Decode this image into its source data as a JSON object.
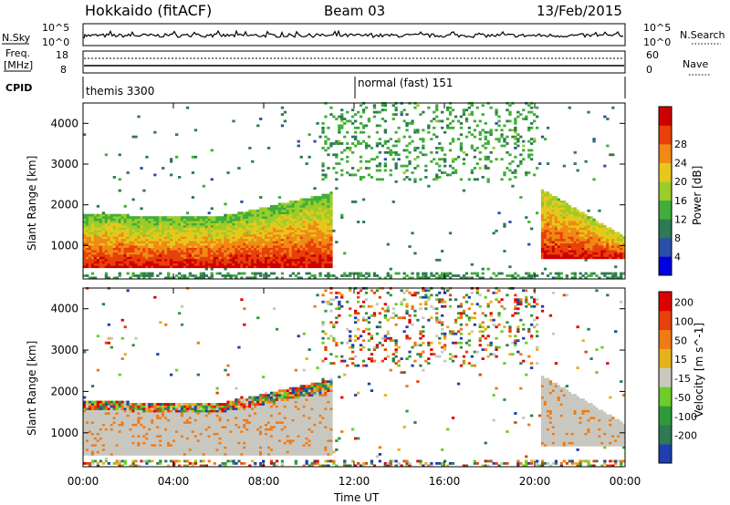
{
  "header": {
    "title": "Hokkaido (fitACF)",
    "beam": "Beam 03",
    "date": "13/Feb/2015"
  },
  "nsky_panel": {
    "left_label": "N.Sky",
    "right_label": "N.Search",
    "tick_top": "10^5",
    "tick_bottom": "10^0",
    "right_tick_top": "10^5",
    "right_tick_bottom": "10^0"
  },
  "freq_panel": {
    "left_label_1": "Freq.",
    "left_label_2": "[MHz]",
    "right_label": "Nave",
    "left_tick_top": "18",
    "left_tick_bottom": "8",
    "right_tick_top": "60",
    "right_tick_bottom": "0"
  },
  "cpid_panel": {
    "label": "CPID",
    "program_1": "themis 3300",
    "program_2": "normal (fast) 151"
  },
  "chart_data": [
    {
      "type": "heatmap",
      "ylabel": "Slant Range [km]",
      "xlabel": "Time UT",
      "x_ticks": [
        "00:00",
        "04:00",
        "08:00",
        "12:00",
        "16:00",
        "20:00",
        "00:00"
      ],
      "y_ticks": [
        1000,
        2000,
        3000,
        4000
      ],
      "ylim": [
        180,
        4500
      ],
      "xlim_hours": [
        0,
        24
      ],
      "colorbar": {
        "label": "Power [dB]",
        "ticks": [
          4,
          8,
          12,
          16,
          20,
          24,
          28
        ],
        "colors": [
          "#0000e0",
          "#2a4fa8",
          "#2e7a52",
          "#3fae3a",
          "#9ccc2a",
          "#e6c81c",
          "#f08a14",
          "#e8400a",
          "#cc0000"
        ]
      }
    },
    {
      "type": "heatmap",
      "ylabel": "Slant Range [km]",
      "xlabel": "Time UT",
      "x_ticks": [
        "00:00",
        "04:00",
        "08:00",
        "12:00",
        "16:00",
        "20:00",
        "00:00"
      ],
      "y_ticks": [
        1000,
        2000,
        3000,
        4000
      ],
      "ylim": [
        180,
        4500
      ],
      "xlim_hours": [
        0,
        24
      ],
      "colorbar": {
        "label": "Velocity [m s^-1]",
        "ticks": [
          200,
          100,
          50,
          15,
          -15,
          -50,
          -100,
          -200
        ],
        "colors": [
          "#1f3fb0",
          "#2e7a52",
          "#2f9a3a",
          "#6ccc2a",
          "#c8c8c0",
          "#e6b21c",
          "#f07a14",
          "#e8400a",
          "#dd0000"
        ]
      }
    }
  ],
  "x_axis_label": "Time UT",
  "x_tick_labels": [
    "00:00",
    "04:00",
    "08:00",
    "12:00",
    "16:00",
    "20:00",
    "00:00"
  ]
}
